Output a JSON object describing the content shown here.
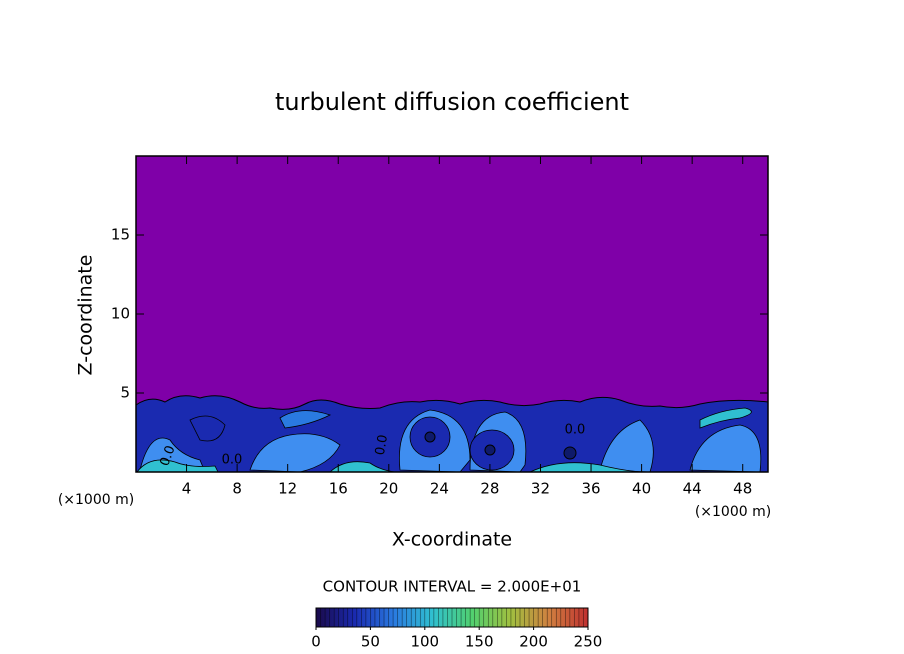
{
  "chart_data": {
    "type": "contour",
    "title": "turbulent diffusion coefficient",
    "x_label": "X-coordinate",
    "y_label": "Z-coordinate",
    "x_unit_left": "(×1000 m)",
    "x_unit_right": "(×1000 m)",
    "xlim": [
      0,
      50
    ],
    "xticks": [
      4,
      8,
      12,
      16,
      20,
      24,
      28,
      32,
      36,
      40,
      44,
      48
    ],
    "ylim": [
      0,
      20
    ],
    "yticks": [
      5,
      10,
      15
    ],
    "contour_labels": [
      "0.0",
      "0.0",
      "0.0",
      "0.0"
    ],
    "colorbar": {
      "label": "CONTOUR INTERVAL = 2.000E+01",
      "lim": [
        0,
        250
      ],
      "ticks": [
        0,
        50,
        100,
        150,
        200,
        250
      ],
      "colors": [
        "#1a0a4a",
        "#1a2ab0",
        "#2a7ae0",
        "#30c0d0",
        "#50d070",
        "#a0c040",
        "#d08040",
        "#c03030"
      ]
    },
    "background_color": "#7f00a8"
  }
}
